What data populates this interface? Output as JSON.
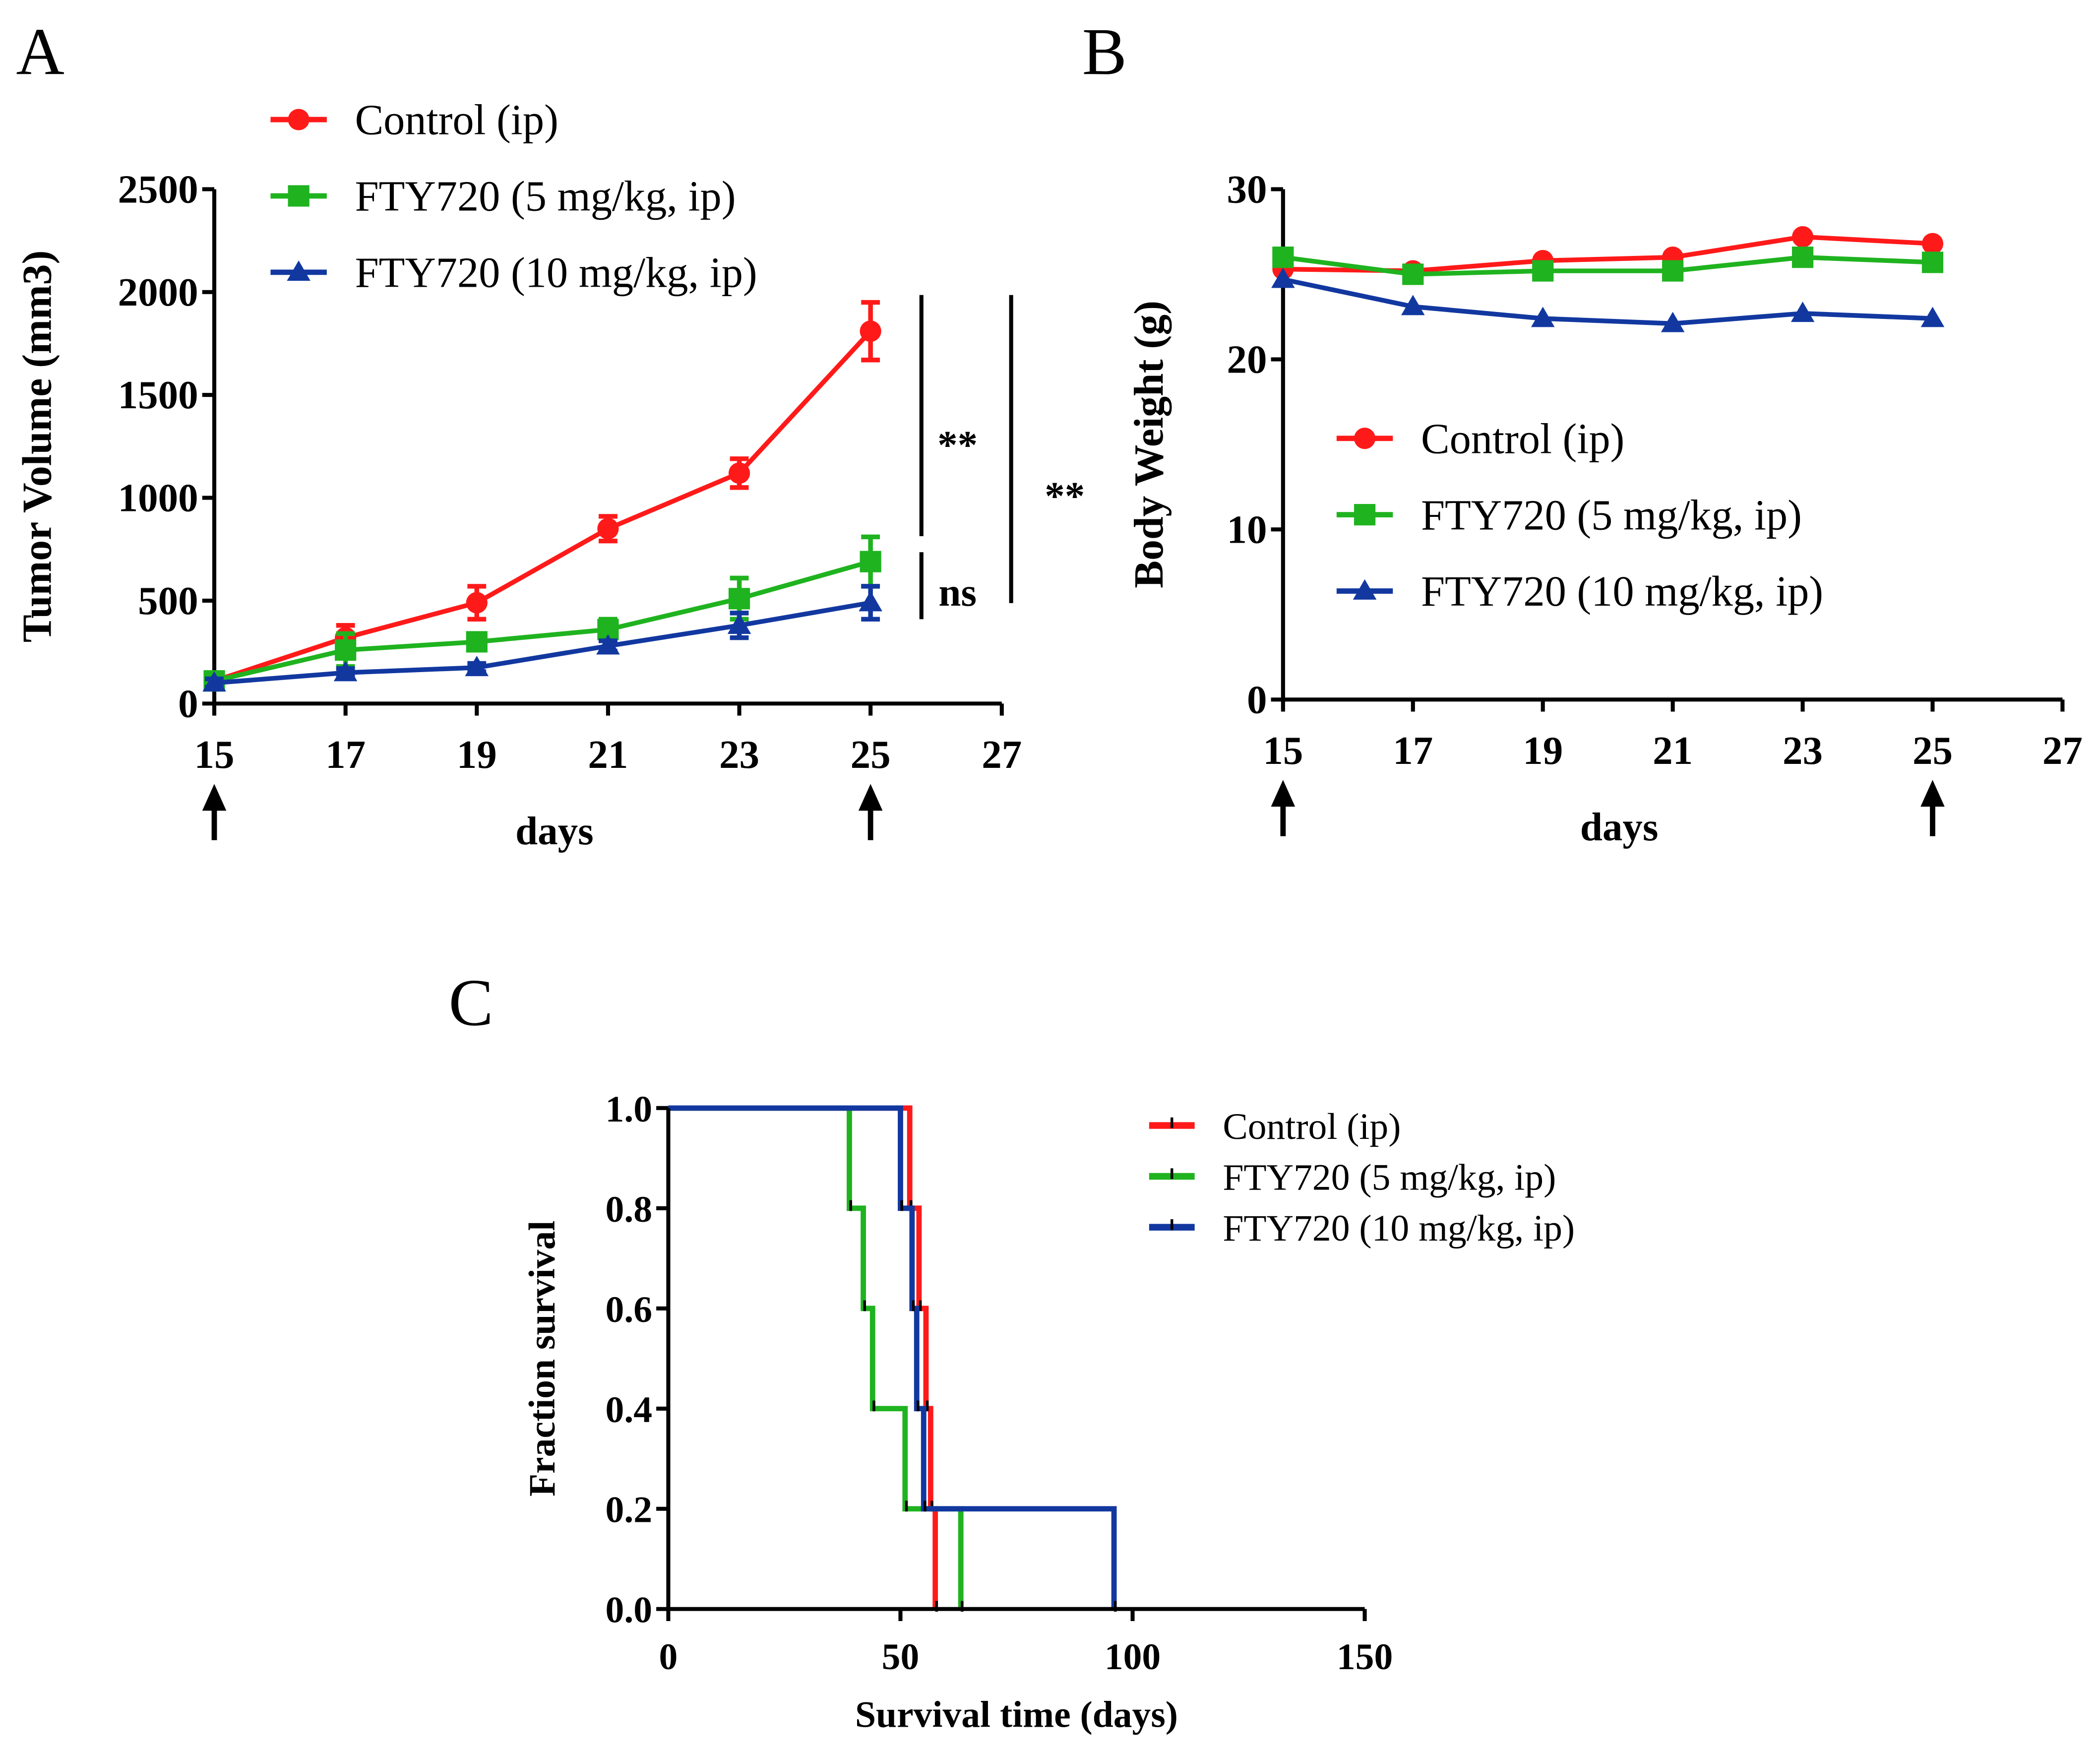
{
  "colors": {
    "control": "#ff1a1a",
    "fty5": "#1fb31f",
    "fty10": "#1238a0",
    "axis": "#000000"
  },
  "chart_data": [
    {
      "panel": "A",
      "type": "line",
      "xlabel": "days",
      "ylabel": "Tumor Volume (mm3)",
      "xlim": [
        15,
        27
      ],
      "ylim": [
        0,
        2500
      ],
      "xticks": [
        15,
        17,
        19,
        21,
        23,
        25,
        27
      ],
      "yticks": [
        0,
        500,
        1000,
        1500,
        2000,
        2500
      ],
      "x": [
        15,
        17,
        19,
        21,
        23,
        25
      ],
      "treatment_arrows_at": [
        15,
        25
      ],
      "legend_position": "top",
      "series": [
        {
          "name": "Control (ip)",
          "key": "control",
          "marker": "circle",
          "values": [
            110,
            320,
            490,
            850,
            1120,
            1810
          ],
          "errors": [
            40,
            60,
            80,
            60,
            70,
            140
          ]
        },
        {
          "name": "FTY720 (5 mg/kg, ip)",
          "key": "fty5",
          "marker": "square",
          "values": [
            110,
            260,
            300,
            360,
            510,
            690
          ],
          "errors": [
            40,
            80,
            40,
            50,
            100,
            120
          ]
        },
        {
          "name": "FTY720 (10 mg/kg, ip)",
          "key": "fty10",
          "marker": "triangle",
          "values": [
            100,
            150,
            175,
            280,
            380,
            490
          ],
          "errors": [
            20,
            20,
            20,
            25,
            60,
            80
          ]
        }
      ],
      "annotations": [
        {
          "text": "**",
          "comparison": "Control vs FTY720 (5 mg/kg)"
        },
        {
          "text": "ns",
          "comparison": "FTY720 (5 mg/kg) vs FTY720 (10 mg/kg)"
        },
        {
          "text": "**",
          "comparison": "Control vs FTY720 (10 mg/kg)"
        }
      ]
    },
    {
      "panel": "B",
      "type": "line",
      "xlabel": "days",
      "ylabel": "Body Weight (g)",
      "xlim": [
        15,
        27
      ],
      "ylim": [
        0,
        30
      ],
      "xticks": [
        15,
        17,
        19,
        21,
        23,
        25,
        27
      ],
      "yticks": [
        0,
        10,
        20,
        30
      ],
      "x": [
        15,
        17,
        19,
        21,
        23,
        25
      ],
      "treatment_arrows_at": [
        15,
        25
      ],
      "legend_position": "center",
      "series": [
        {
          "name": "Control (ip)",
          "key": "control",
          "marker": "circle",
          "values": [
            25.3,
            25.2,
            25.8,
            26.0,
            27.2,
            26.8
          ]
        },
        {
          "name": "FTY720 (5 mg/kg, ip)",
          "key": "fty5",
          "marker": "square",
          "values": [
            26.0,
            25.0,
            25.2,
            25.2,
            26.0,
            25.7
          ]
        },
        {
          "name": "FTY720 (10 mg/kg, ip)",
          "key": "fty10",
          "marker": "triangle",
          "values": [
            24.7,
            23.1,
            22.4,
            22.1,
            22.7,
            22.4
          ]
        }
      ]
    },
    {
      "panel": "C",
      "type": "line",
      "subtype": "kaplan-meier",
      "xlabel": "Survival time (days)",
      "ylabel": "Fraction survival",
      "xlim": [
        0,
        150
      ],
      "ylim": [
        0,
        1
      ],
      "xticks": [
        0,
        50,
        100,
        150
      ],
      "yticks": [
        "0.0",
        "0.2",
        "0.4",
        "0.6",
        "0.8",
        "1.0"
      ],
      "legend_position": "top-right",
      "series": [
        {
          "name": "Control (ip)",
          "key": "control",
          "steps": [
            [
              52,
              0.8
            ],
            [
              54,
              0.6
            ],
            [
              55.5,
              0.4
            ],
            [
              56.5,
              0.2
            ],
            [
              57.5,
              0
            ]
          ]
        },
        {
          "name": "FTY720 (5 mg/kg, ip)",
          "key": "fty5",
          "steps": [
            [
              39,
              0.8
            ],
            [
              42,
              0.6
            ],
            [
              44,
              0.4
            ],
            [
              51,
              0.2
            ],
            [
              63,
              0
            ]
          ]
        },
        {
          "name": "FTY720 (10 mg/kg, ip)",
          "key": "fty10",
          "steps": [
            [
              50,
              0.8
            ],
            [
              52.5,
              0.6
            ],
            [
              53.5,
              0.4
            ],
            [
              55,
              0.2
            ],
            [
              96,
              0
            ]
          ]
        }
      ]
    }
  ]
}
